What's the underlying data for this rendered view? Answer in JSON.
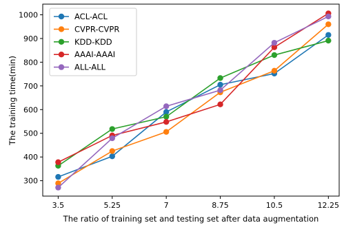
{
  "chart_data": {
    "type": "line",
    "title": "",
    "xlabel": "The ratio of training set and testing set after data augmentation",
    "ylabel": "The training time(min)",
    "categories": [
      "3.5",
      "5.25",
      "7",
      "8.75",
      "10.5",
      "12.25"
    ],
    "x": [
      3.5,
      5.25,
      7,
      8.75,
      10.5,
      12.25
    ],
    "xlim": [
      3.0,
      12.6
    ],
    "ylim": [
      235,
      1045
    ],
    "yticks": [
      300,
      400,
      500,
      600,
      700,
      800,
      900,
      1000
    ],
    "grid": false,
    "legend_position": "top-left",
    "series": [
      {
        "name": "ACL-ACL",
        "color": "#1f77b4",
        "values": [
          316,
          403,
          590,
          705,
          752,
          915
        ]
      },
      {
        "name": "CVPR-CVPR",
        "color": "#ff7f0e",
        "values": [
          289,
          425,
          506,
          673,
          764,
          960
        ]
      },
      {
        "name": "KDD-KDD",
        "color": "#2ca02c",
        "values": [
          363,
          518,
          570,
          733,
          830,
          891
        ]
      },
      {
        "name": "AAAI-AAAI",
        "color": "#d62728",
        "values": [
          378,
          491,
          548,
          622,
          863,
          1006
        ]
      },
      {
        "name": "ALL-ALL",
        "color": "#9467bd",
        "values": [
          271,
          479,
          614,
          682,
          882,
          993
        ]
      }
    ]
  }
}
